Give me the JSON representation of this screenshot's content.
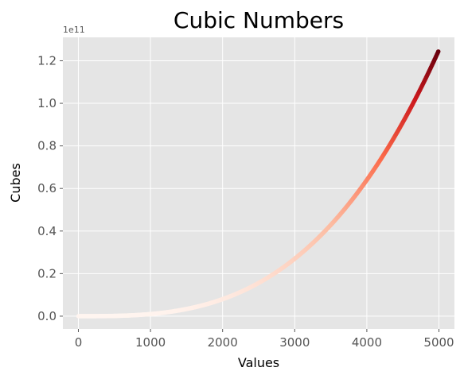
{
  "chart_data": {
    "type": "scatter",
    "title": "Cubic Numbers",
    "xlabel": "Values",
    "ylabel": "Cubes",
    "y_offset_label": "1e11",
    "x_start": 1,
    "x_end": 5000,
    "y_formula": "x^3",
    "xlim": [
      -215,
      5215
    ],
    "ylim": [
      -0.06,
      1.31
    ],
    "y_unit": 100000000000.0,
    "xticks": [
      0,
      1000,
      2000,
      3000,
      4000,
      5000
    ],
    "xtick_labels": [
      "0",
      "1000",
      "2000",
      "3000",
      "4000",
      "5000"
    ],
    "yticks": [
      0.0,
      0.2,
      0.4,
      0.6,
      0.8,
      1.0,
      1.2
    ],
    "ytick_labels": [
      "0.0",
      "0.2",
      "0.4",
      "0.6",
      "0.8",
      "1.0",
      "1.2"
    ],
    "colormap": "Reds",
    "color_low": "#fff5f0",
    "color_mid1": "#fcbba1",
    "color_mid2": "#fb6a4a",
    "color_mid3": "#cb181d",
    "color_high": "#67000d",
    "grid": true,
    "background": "#e5e5e5",
    "gridcolor": "#ffffff"
  }
}
